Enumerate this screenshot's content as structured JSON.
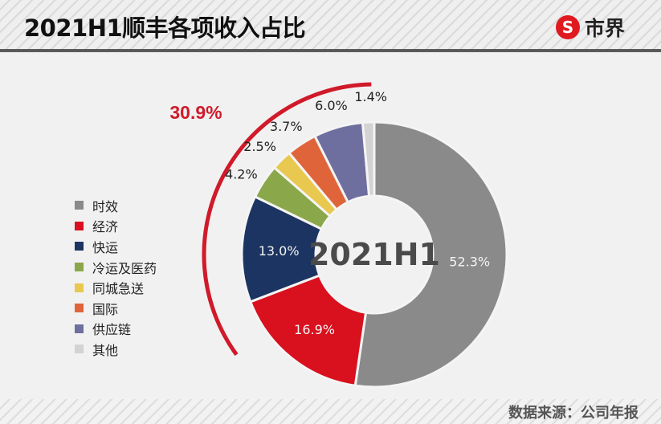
{
  "header": {
    "title": "2021H1顺丰各项收入占比",
    "logo_mark": "S",
    "logo_text": "市界"
  },
  "footer": {
    "source": "数据来源：公司年报"
  },
  "chart_data": {
    "type": "pie",
    "subtype": "donut",
    "title": "2021H1顺丰各项收入占比",
    "center_label": "2021H1",
    "categories": [
      "时效",
      "经济",
      "快运",
      "冷运及医药",
      "同城急送",
      "国际",
      "供应链",
      "其他"
    ],
    "values": [
      52.3,
      16.9,
      13.0,
      4.2,
      2.5,
      3.7,
      6.0,
      1.4
    ],
    "labels": [
      "52.3%",
      "16.9%",
      "13.0%",
      "4.2%",
      "2.5%",
      "3.7%",
      "6.0%",
      "1.4%"
    ],
    "colors": [
      "#8a8a8a",
      "#d9101e",
      "#1c3461",
      "#8aa74a",
      "#e8c84e",
      "#e0643a",
      "#6f6f9f",
      "#d3d3d3"
    ],
    "annotation": {
      "text": "30.9%",
      "color": "#d01a2a",
      "description": "arc spanning non-时效/经济 segments (快运+冷运及医药+同城急送+国际+供应链+其他)"
    },
    "legend_position": "left",
    "start_angle": "12 o'clock, clockwise"
  }
}
